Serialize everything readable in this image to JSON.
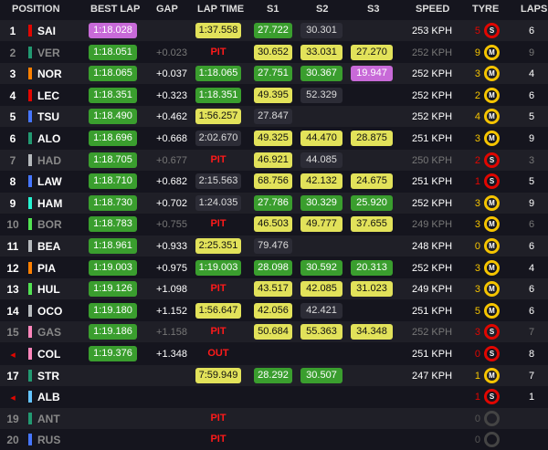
{
  "headers": {
    "position": "POSITION",
    "best_lap": "BEST LAP",
    "gap": "GAP",
    "lap_time": "LAP TIME",
    "s1": "S1",
    "s2": "S2",
    "s3": "S3",
    "speed": "SPEED",
    "tyre": "TYRE",
    "laps": "LAPS"
  },
  "colors": {
    "purple_bg": "#c86ad8",
    "green_bg": "#3a9e2e",
    "yellow_bg": "#e2e25a",
    "plain_bg": "#2c2c36",
    "pit": "#ff1a1a",
    "soft": "#e10600",
    "medium": "#f5c400",
    "ghost_text": "#777777"
  },
  "rows": [
    {
      "pos": "1",
      "team": "#e10600",
      "code": "SAI",
      "best": "1:18.028",
      "best_s": "purple",
      "gap": "",
      "lap": "1:37.558",
      "lap_s": "yellow",
      "s1": "27.722",
      "s1_s": "green",
      "s2": "30.301",
      "s2_s": "plain",
      "s3": "",
      "s3_s": "",
      "speed": "253 KPH",
      "tyre_count": "5",
      "tyre": "S",
      "laps": "6"
    },
    {
      "pos": "2",
      "team": "#229971",
      "code": "VER",
      "best": "1:18.051",
      "best_s": "green",
      "gap": "+0.023",
      "lap": "PIT",
      "lap_s": "pit",
      "s1": "30.652",
      "s1_s": "yellow",
      "s2": "33.031",
      "s2_s": "yellow",
      "s3": "27.270",
      "s3_s": "yellow",
      "speed": "252 KPH",
      "tyre_count": "9",
      "tyre": "M",
      "laps": "9",
      "ghost": true
    },
    {
      "pos": "3",
      "team": "#ff8000",
      "code": "NOR",
      "best": "1:18.065",
      "best_s": "green",
      "gap": "+0.037",
      "lap": "1:18.065",
      "lap_s": "green",
      "s1": "27.751",
      "s1_s": "green",
      "s2": "30.367",
      "s2_s": "green",
      "s3": "19.947",
      "s3_s": "purple",
      "speed": "252 KPH",
      "tyre_count": "3",
      "tyre": "M",
      "laps": "4"
    },
    {
      "pos": "4",
      "team": "#e10600",
      "code": "LEC",
      "best": "1:18.351",
      "best_s": "green",
      "gap": "+0.323",
      "lap": "1:18.351",
      "lap_s": "green",
      "s1": "49.395",
      "s1_s": "yellow",
      "s2": "52.329",
      "s2_s": "plain",
      "s3": "",
      "s3_s": "",
      "speed": "252 KPH",
      "tyre_count": "2",
      "tyre": "M",
      "laps": "6"
    },
    {
      "pos": "5",
      "team": "#4676ff",
      "code": "TSU",
      "best": "1:18.490",
      "best_s": "green",
      "gap": "+0.462",
      "lap": "1:56.257",
      "lap_s": "yellow",
      "s1": "27.847",
      "s1_s": "plain",
      "s2": "",
      "s2_s": "",
      "s3": "",
      "s3_s": "",
      "speed": "252 KPH",
      "tyre_count": "4",
      "tyre": "M",
      "laps": "5"
    },
    {
      "pos": "6",
      "team": "#229971",
      "code": "ALO",
      "best": "1:18.696",
      "best_s": "green",
      "gap": "+0.668",
      "lap": "2:02.670",
      "lap_s": "plain",
      "s1": "49.325",
      "s1_s": "yellow",
      "s2": "44.470",
      "s2_s": "yellow",
      "s3": "28.875",
      "s3_s": "yellow",
      "speed": "251 KPH",
      "tyre_count": "3",
      "tyre": "M",
      "laps": "9"
    },
    {
      "pos": "7",
      "team": "#b6babd",
      "code": "HAD",
      "best": "1:18.705",
      "best_s": "green",
      "gap": "+0.677",
      "lap": "PIT",
      "lap_s": "pit",
      "s1": "46.921",
      "s1_s": "yellow",
      "s2": "44.085",
      "s2_s": "plain",
      "s3": "",
      "s3_s": "",
      "speed": "250 KPH",
      "tyre_count": "2",
      "tyre": "S",
      "laps": "3",
      "ghost": true
    },
    {
      "pos": "8",
      "team": "#4676ff",
      "code": "LAW",
      "best": "1:18.710",
      "best_s": "green",
      "gap": "+0.682",
      "lap": "2:15.563",
      "lap_s": "plain",
      "s1": "68.756",
      "s1_s": "yellow",
      "s2": "42.132",
      "s2_s": "yellow",
      "s3": "24.675",
      "s3_s": "yellow",
      "speed": "251 KPH",
      "tyre_count": "1",
      "tyre": "S",
      "laps": "5"
    },
    {
      "pos": "9",
      "team": "#27f4d2",
      "code": "HAM",
      "best": "1:18.730",
      "best_s": "green",
      "gap": "+0.702",
      "lap": "1:24.035",
      "lap_s": "plain",
      "s1": "27.786",
      "s1_s": "green",
      "s2": "30.329",
      "s2_s": "green",
      "s3": "25.920",
      "s3_s": "green",
      "speed": "252 KPH",
      "tyre_count": "3",
      "tyre": "M",
      "laps": "9"
    },
    {
      "pos": "10",
      "team": "#52e252",
      "code": "BOR",
      "best": "1:18.783",
      "best_s": "green",
      "gap": "+0.755",
      "lap": "PIT",
      "lap_s": "pit",
      "s1": "46.503",
      "s1_s": "yellow",
      "s2": "49.777",
      "s2_s": "yellow",
      "s3": "37.655",
      "s3_s": "yellow",
      "speed": "249 KPH",
      "tyre_count": "3",
      "tyre": "M",
      "laps": "6",
      "ghost": true
    },
    {
      "pos": "11",
      "team": "#b6babd",
      "code": "BEA",
      "best": "1:18.961",
      "best_s": "green",
      "gap": "+0.933",
      "lap": "2:25.351",
      "lap_s": "yellow",
      "s1": "79.476",
      "s1_s": "plain",
      "s2": "",
      "s2_s": "",
      "s3": "",
      "s3_s": "",
      "speed": "248 KPH",
      "tyre_count": "0",
      "tyre": "M",
      "laps": "6"
    },
    {
      "pos": "12",
      "team": "#ff8000",
      "code": "PIA",
      "best": "1:19.003",
      "best_s": "green",
      "gap": "+0.975",
      "lap": "1:19.003",
      "lap_s": "green",
      "s1": "28.098",
      "s1_s": "green",
      "s2": "30.592",
      "s2_s": "green",
      "s3": "20.313",
      "s3_s": "green",
      "speed": "252 KPH",
      "tyre_count": "3",
      "tyre": "M",
      "laps": "4"
    },
    {
      "pos": "13",
      "team": "#52e252",
      "code": "HUL",
      "best": "1:19.126",
      "best_s": "green",
      "gap": "+1.098",
      "lap": "PIT",
      "lap_s": "pit",
      "s1": "43.517",
      "s1_s": "yellow",
      "s2": "42.085",
      "s2_s": "yellow",
      "s3": "31.023",
      "s3_s": "yellow",
      "speed": "249 KPH",
      "tyre_count": "3",
      "tyre": "M",
      "laps": "6"
    },
    {
      "pos": "14",
      "team": "#b6babd",
      "code": "OCO",
      "best": "1:19.180",
      "best_s": "green",
      "gap": "+1.152",
      "lap": "1:56.647",
      "lap_s": "yellow",
      "s1": "42.056",
      "s1_s": "yellow",
      "s2": "42.421",
      "s2_s": "plain",
      "s3": "",
      "s3_s": "",
      "speed": "251 KPH",
      "tyre_count": "5",
      "tyre": "M",
      "laps": "6"
    },
    {
      "pos": "15",
      "team": "#ff87bc",
      "code": "GAS",
      "best": "1:19.186",
      "best_s": "green",
      "gap": "+1.158",
      "lap": "PIT",
      "lap_s": "pit",
      "s1": "50.684",
      "s1_s": "yellow",
      "s2": "55.363",
      "s2_s": "yellow",
      "s3": "34.348",
      "s3_s": "yellow",
      "speed": "252 KPH",
      "tyre_count": "3",
      "tyre": "S",
      "laps": "7",
      "ghost": true
    },
    {
      "pos": "◂",
      "team": "#ff87bc",
      "code": "COL",
      "best": "1:19.376",
      "best_s": "green",
      "gap": "+1.348",
      "lap": "OUT",
      "lap_s": "pit",
      "s1": "",
      "s1_s": "",
      "s2": "",
      "s2_s": "",
      "s3": "",
      "s3_s": "",
      "speed": "251 KPH",
      "tyre_count": "0",
      "tyre": "S",
      "laps": "8",
      "tri": true
    },
    {
      "pos": "17",
      "team": "#229971",
      "code": "STR",
      "best": "",
      "best_s": "",
      "gap": "",
      "lap": "7:59.949",
      "lap_s": "yellow",
      "s1": "28.292",
      "s1_s": "green",
      "s2": "30.507",
      "s2_s": "green",
      "s3": "",
      "s3_s": "",
      "speed": "247 KPH",
      "tyre_count": "1",
      "tyre": "M",
      "laps": "7"
    },
    {
      "pos": "◂",
      "team": "#64c4ff",
      "code": "ALB",
      "best": "",
      "best_s": "",
      "gap": "",
      "lap": "",
      "lap_s": "",
      "s1": "",
      "s1_s": "",
      "s2": "",
      "s2_s": "",
      "s3": "",
      "s3_s": "",
      "speed": "",
      "tyre_count": "1",
      "tyre": "S",
      "laps": "1",
      "tri": true
    },
    {
      "pos": "19",
      "team": "#229971",
      "code": "ANT",
      "best": "",
      "best_s": "",
      "gap": "",
      "lap": "PIT",
      "lap_s": "pit",
      "s1": "",
      "s1_s": "",
      "s2": "",
      "s2_s": "",
      "s3": "",
      "s3_s": "",
      "speed": "",
      "tyre_count": "0",
      "tyre": "",
      "laps": "",
      "ghost": true
    },
    {
      "pos": "20",
      "team": "#4676ff",
      "code": "RUS",
      "best": "",
      "best_s": "",
      "gap": "",
      "lap": "PIT",
      "lap_s": "pit",
      "s1": "",
      "s1_s": "",
      "s2": "",
      "s2_s": "",
      "s3": "",
      "s3_s": "",
      "speed": "",
      "tyre_count": "0",
      "tyre": "",
      "laps": "",
      "ghost": true
    }
  ]
}
